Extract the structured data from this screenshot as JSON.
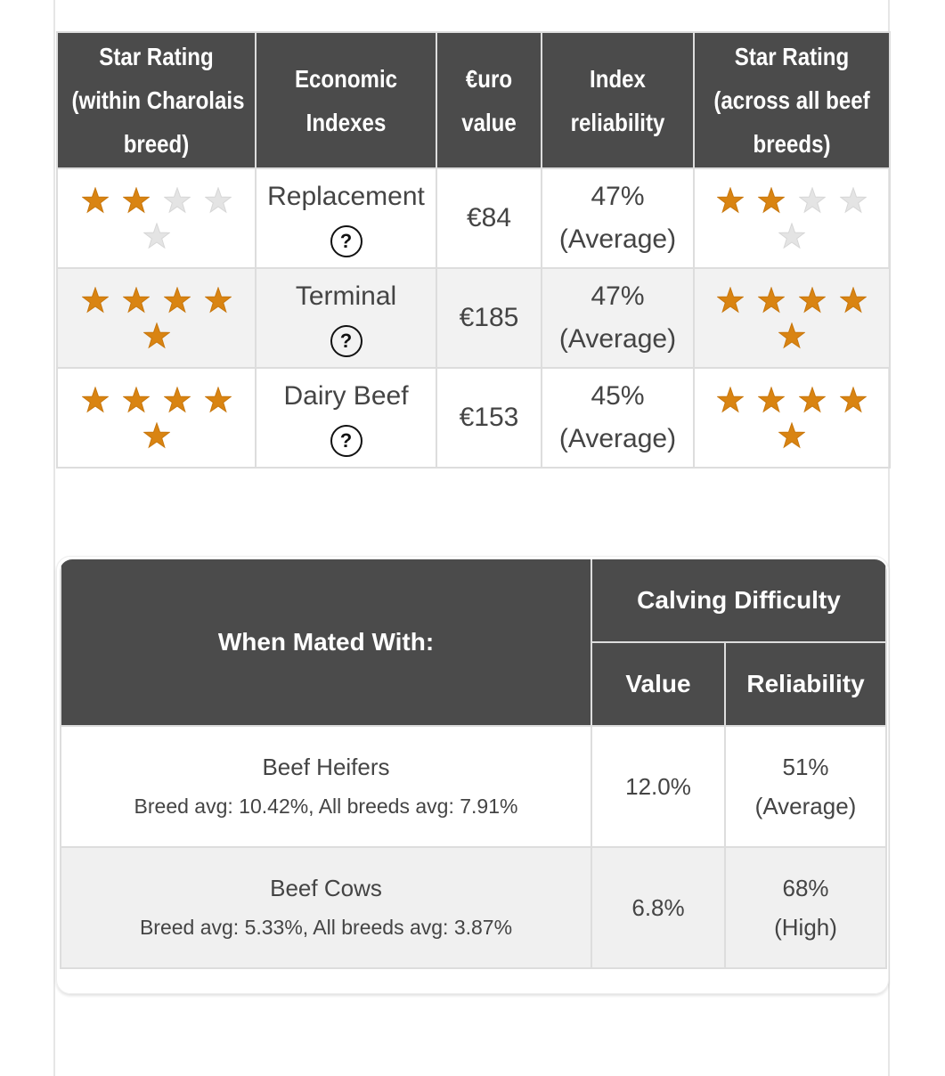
{
  "ratings_table": {
    "headers": [
      [
        "Star Rating",
        "(within Charolais",
        "breed)"
      ],
      [
        "Economic",
        "Indexes"
      ],
      [
        "€uro",
        "value"
      ],
      [
        "Index",
        "reliability"
      ],
      [
        "Star Rating",
        "(across all beef",
        "breeds)"
      ]
    ],
    "max_stars": 5,
    "help_label": "?",
    "rows": [
      {
        "stars_within": 2,
        "index": "Replacement",
        "euro": "€84",
        "reliability": "47%",
        "reliability_level": "(Average)",
        "stars_across": 2
      },
      {
        "stars_within": 5,
        "index": "Terminal",
        "euro": "€185",
        "reliability": "47%",
        "reliability_level": "(Average)",
        "stars_across": 5
      },
      {
        "stars_within": 5,
        "index": "Dairy Beef",
        "euro": "€153",
        "reliability": "45%",
        "reliability_level": "(Average)",
        "stars_across": 5
      }
    ]
  },
  "calving_table": {
    "mated_header": "When Mated With:",
    "group_header": "Calving Difficulty",
    "value_header": "Value",
    "reliability_header": "Reliability",
    "rows": [
      {
        "name": "Beef Heifers",
        "averages": "Breed avg: 10.42%, All breeds avg: 7.91%",
        "value": "12.0%",
        "reliability": "51%",
        "reliability_level": "(Average)"
      },
      {
        "name": "Beef Cows",
        "averages": "Breed avg: 5.33%, All breeds avg: 3.87%",
        "value": "6.8%",
        "reliability": "68%",
        "reliability_level": "(High)"
      }
    ]
  }
}
